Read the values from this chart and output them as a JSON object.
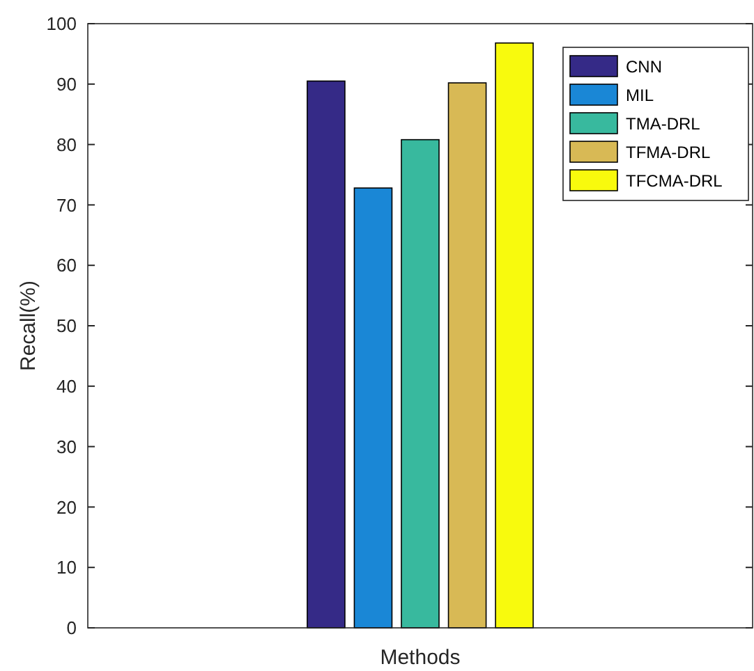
{
  "chart_data": {
    "type": "bar",
    "xlabel": "Methods",
    "ylabel": "Recall(%)",
    "categories": [
      null
    ],
    "series": [
      {
        "name": "CNN",
        "color": "#352a87",
        "values": [
          90.5
        ]
      },
      {
        "name": "MIL",
        "color": "#1a87d6",
        "values": [
          72.8
        ]
      },
      {
        "name": "TMA-DRL",
        "color": "#38b99e",
        "values": [
          80.8
        ]
      },
      {
        "name": "TFMA-DRL",
        "color": "#d8b955",
        "values": [
          90.2
        ]
      },
      {
        "name": "TFCMA-DRL",
        "color": "#f8fa0d",
        "values": [
          96.8
        ]
      }
    ],
    "ylim": [
      0,
      100
    ],
    "yticks": [
      0,
      10,
      20,
      30,
      40,
      50,
      60,
      70,
      80,
      90,
      100
    ],
    "grid": false,
    "legend": "top right"
  }
}
